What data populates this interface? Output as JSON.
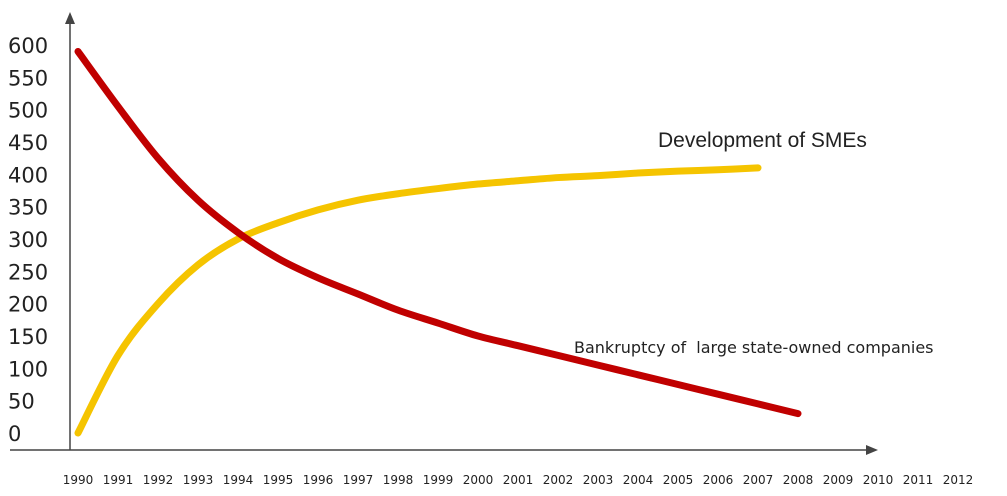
{
  "chart_data": {
    "type": "line",
    "title": "",
    "xlabel": "",
    "ylabel": "",
    "categories": [
      "1990",
      "1991",
      "1992",
      "1993",
      "1994",
      "1995",
      "1996",
      "1997",
      "1998",
      "1999",
      "2000",
      "2001",
      "2002",
      "2003",
      "2004",
      "2005",
      "2006",
      "2007",
      "2008",
      "2009",
      "2010",
      "2011",
      "2012"
    ],
    "y_ticks": [
      "600",
      "550",
      "500",
      "450",
      "400",
      "350",
      "300",
      "250",
      "200",
      "150",
      "100",
      "50",
      "0"
    ],
    "ylim": [
      0,
      600
    ],
    "grid": false,
    "legend": "none",
    "series": [
      {
        "name": "Development of SMEs",
        "color": "#f5c400",
        "x": [
          1990,
          1991,
          1992,
          1993,
          1994,
          1995,
          1996,
          1997,
          1998,
          1999,
          2000,
          2001,
          2002,
          2003,
          2004,
          2005,
          2006,
          2007
        ],
        "values": [
          0,
          120,
          200,
          260,
          300,
          325,
          345,
          360,
          370,
          378,
          385,
          390,
          395,
          398,
          402,
          405,
          407,
          410
        ]
      },
      {
        "name": "Bankruptcy of  large state-owned companies",
        "color": "#c00000",
        "x": [
          1990,
          1991,
          1992,
          1993,
          1994,
          1995,
          1996,
          1997,
          1998,
          1999,
          2000,
          2001,
          2002,
          2003,
          2004,
          2005,
          2006,
          2007,
          2008
        ],
        "values": [
          590,
          505,
          425,
          360,
          310,
          270,
          240,
          215,
          190,
          170,
          150,
          135,
          120,
          105,
          90,
          75,
          60,
          45,
          30
        ]
      }
    ]
  },
  "colors": {
    "axis": "#444444",
    "text": "#222222"
  }
}
